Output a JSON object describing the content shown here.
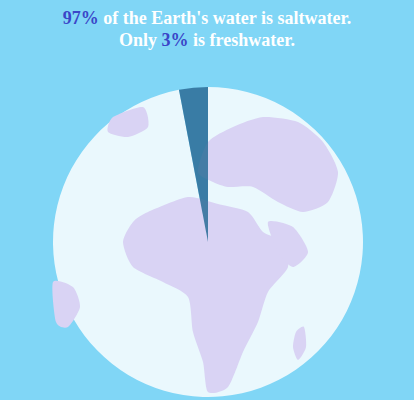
{
  "chart_data": {
    "type": "pie",
    "title": "97% of the Earth's water is saltwater.",
    "subtitle": "Only 3% is freshwater.",
    "values": [
      97,
      3
    ],
    "value_labels": [
      "97%",
      "3%"
    ],
    "colors": [
      "#eaf8fd",
      "#2f6f9a"
    ]
  }
}
